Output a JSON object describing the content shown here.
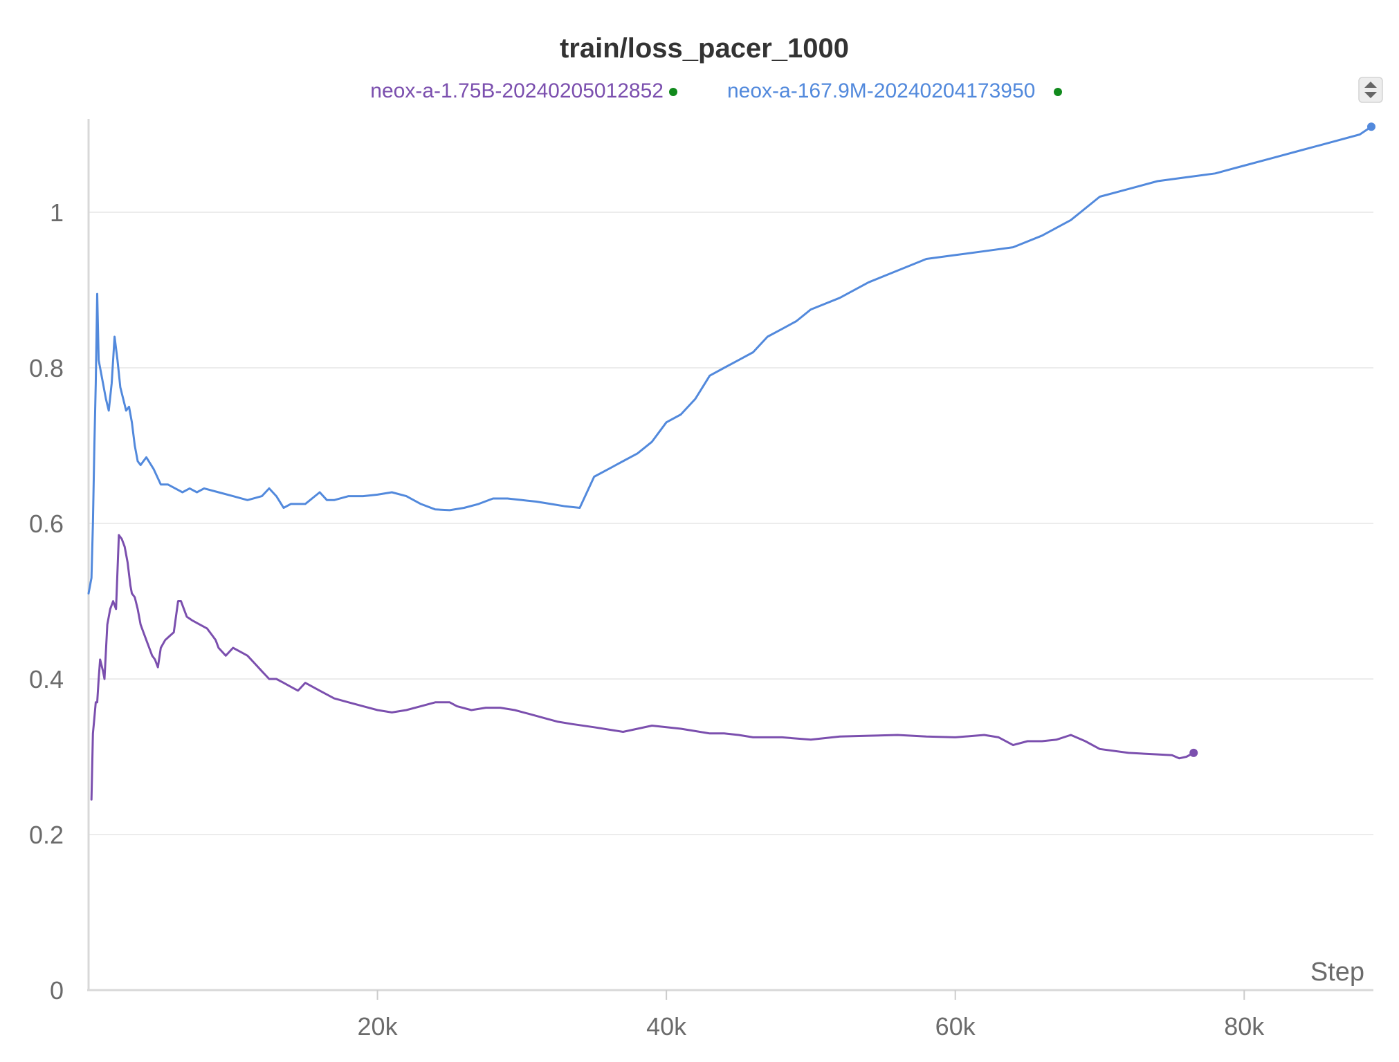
{
  "chart_data": {
    "type": "line",
    "title": "train/loss_pacer_1000",
    "xlabel": "Step",
    "ylabel": "",
    "xlim": [
      0,
      88800
    ],
    "ylim": [
      0,
      1.12
    ],
    "x_ticks": [
      20000,
      40000,
      60000,
      80000
    ],
    "x_tick_labels": [
      "20k",
      "40k",
      "60k",
      "80k"
    ],
    "y_ticks": [
      0,
      0.2,
      0.4,
      0.6,
      0.8,
      1
    ],
    "y_tick_labels": [
      "0",
      "0.2",
      "0.4",
      "0.6",
      "0.8",
      "1"
    ],
    "grid": "horizontal",
    "legend_position": "top-center",
    "legend_status_color": "#118a1d",
    "series": [
      {
        "name": "neox-a-1.75B-20240205012852",
        "color": "#7b4fae",
        "x": [
          200,
          300,
          400,
          500,
          600,
          700,
          800,
          1000,
          1100,
          1300,
          1500,
          1700,
          1900,
          2100,
          2300,
          2400,
          2500,
          2700,
          2900,
          3000,
          3200,
          3400,
          3600,
          3800,
          4000,
          4200,
          4400,
          4600,
          4800,
          5000,
          5300,
          5600,
          5900,
          6200,
          6400,
          6600,
          6800,
          7200,
          7700,
          8200,
          8400,
          8600,
          8800,
          9000,
          9500,
          10000,
          10500,
          11000,
          11500,
          12000,
          12500,
          13000,
          13500,
          14000,
          14500,
          15000,
          16000,
          17000,
          18000,
          19000,
          20000,
          21000,
          22000,
          23000,
          24000,
          25000,
          25500,
          26500,
          27500,
          28500,
          29500,
          30500,
          31500,
          32500,
          33500,
          35000,
          37000,
          39000,
          41000,
          42000,
          43000,
          44000,
          45000,
          46000,
          48000,
          50000,
          52000,
          54000,
          56000,
          58000,
          60000,
          62000,
          63000,
          64000,
          65000,
          66000,
          67000,
          68000,
          69000,
          70000,
          72000,
          74000,
          75000,
          75500,
          76000,
          76500
        ],
        "y": [
          0.245,
          0.33,
          0.35,
          0.37,
          0.37,
          0.4,
          0.425,
          0.41,
          0.4,
          0.47,
          0.49,
          0.5,
          0.49,
          0.585,
          0.58,
          0.575,
          0.57,
          0.55,
          0.52,
          0.51,
          0.505,
          0.49,
          0.47,
          0.46,
          0.45,
          0.44,
          0.43,
          0.425,
          0.415,
          0.44,
          0.45,
          0.455,
          0.46,
          0.5,
          0.5,
          0.49,
          0.48,
          0.475,
          0.47,
          0.465,
          0.46,
          0.455,
          0.45,
          0.44,
          0.43,
          0.44,
          0.435,
          0.43,
          0.42,
          0.41,
          0.4,
          0.4,
          0.395,
          0.39,
          0.385,
          0.395,
          0.385,
          0.375,
          0.37,
          0.365,
          0.36,
          0.357,
          0.36,
          0.365,
          0.37,
          0.37,
          0.365,
          0.36,
          0.363,
          0.363,
          0.36,
          0.355,
          0.35,
          0.345,
          0.342,
          0.338,
          0.332,
          0.34,
          0.336,
          0.333,
          0.33,
          0.33,
          0.328,
          0.325,
          0.325,
          0.322,
          0.326,
          0.327,
          0.328,
          0.326,
          0.325,
          0.328,
          0.325,
          0.315,
          0.32,
          0.32,
          0.322,
          0.328,
          0.32,
          0.31,
          0.305,
          0.303,
          0.302,
          0.298,
          0.3,
          0.305
        ],
        "end_marker": true
      },
      {
        "name": "neox-a-167.9M-20240204173950",
        "color": "#5289dc",
        "x": [
          0,
          200,
          300,
          400,
          500,
          600,
          700,
          800,
          900,
          1000,
          1200,
          1400,
          1600,
          1800,
          2000,
          2200,
          2400,
          2600,
          2800,
          3000,
          3200,
          3400,
          3600,
          3800,
          4000,
          4500,
          5000,
          5500,
          6000,
          6500,
          7000,
          7500,
          8000,
          9000,
          10000,
          11000,
          12000,
          12500,
          13000,
          13500,
          14000,
          15000,
          16000,
          16500,
          17000,
          18000,
          19000,
          20000,
          21000,
          22000,
          23000,
          24000,
          25000,
          26000,
          27000,
          28000,
          29000,
          30000,
          31000,
          32000,
          33000,
          34000,
          35000,
          36000,
          37000,
          38000,
          39000,
          40000,
          41000,
          42000,
          43000,
          44000,
          45000,
          46000,
          47000,
          48000,
          49000,
          50000,
          52000,
          54000,
          56000,
          58000,
          60000,
          62000,
          64000,
          66000,
          68000,
          70000,
          72000,
          74000,
          76000,
          78000,
          80000,
          82000,
          84000,
          86000,
          88000,
          88800
        ],
        "y": [
          0.51,
          0.53,
          0.6,
          0.7,
          0.78,
          0.895,
          0.81,
          0.8,
          0.79,
          0.78,
          0.76,
          0.745,
          0.78,
          0.84,
          0.81,
          0.775,
          0.76,
          0.745,
          0.75,
          0.73,
          0.7,
          0.68,
          0.675,
          0.68,
          0.685,
          0.67,
          0.65,
          0.65,
          0.645,
          0.64,
          0.645,
          0.64,
          0.645,
          0.64,
          0.635,
          0.63,
          0.635,
          0.645,
          0.635,
          0.62,
          0.625,
          0.625,
          0.64,
          0.63,
          0.63,
          0.635,
          0.635,
          0.637,
          0.64,
          0.635,
          0.625,
          0.618,
          0.617,
          0.62,
          0.625,
          0.632,
          0.632,
          0.63,
          0.628,
          0.625,
          0.622,
          0.62,
          0.66,
          0.67,
          0.68,
          0.69,
          0.705,
          0.73,
          0.74,
          0.76,
          0.79,
          0.8,
          0.81,
          0.82,
          0.84,
          0.85,
          0.86,
          0.875,
          0.89,
          0.91,
          0.925,
          0.94,
          0.945,
          0.95,
          0.955,
          0.97,
          0.99,
          1.02,
          1.03,
          1.04,
          1.045,
          1.05,
          1.06,
          1.07,
          1.08,
          1.09,
          1.1,
          1.11
        ],
        "end_marker": true
      }
    ]
  },
  "controls": {
    "legend_scroll_icon": "sort-up-down-icon"
  }
}
